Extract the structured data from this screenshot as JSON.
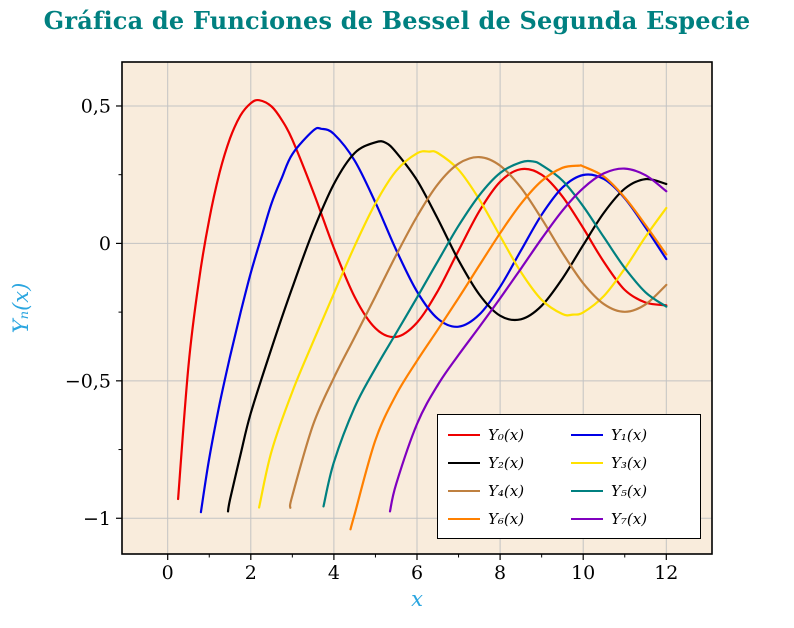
{
  "figure": {
    "title": "Gráfica de Funciones de Bessel de Segunda Especie",
    "title_color": "#008080",
    "background": "#ffffff"
  },
  "plot": {
    "background": "#f9ecdc",
    "border_color": "#000000",
    "grid_color": "#c3c3c3",
    "line_width": 2.2
  },
  "axes": {
    "x": {
      "label": "x",
      "label_color": "#2ba6e0",
      "ticks": [
        0,
        2,
        4,
        6,
        8,
        10,
        12
      ],
      "tick_labels": [
        "0",
        "2",
        "4",
        "6",
        "8",
        "10",
        "12"
      ],
      "minor_ticks": [
        1,
        3,
        5,
        7,
        9,
        11
      ]
    },
    "y": {
      "label": "Yₙ(x)",
      "label_color": "#2ba6e0",
      "ticks": [
        0.5,
        0,
        -0.5,
        -1
      ],
      "tick_labels": [
        "0,5",
        "0",
        "−0,5",
        "−1"
      ],
      "minor_ticks": [
        0.25,
        -0.25,
        -0.75
      ]
    }
  },
  "legend": {
    "columns": 2,
    "entries": [
      {
        "label": "Y₀(x)",
        "color": "#ee0000"
      },
      {
        "label": "Y₁(x)",
        "color": "#0000e6"
      },
      {
        "label": "Y₂(x)",
        "color": "#000000"
      },
      {
        "label": "Y₃(x)",
        "color": "#ffe100"
      },
      {
        "label": "Y₄(x)",
        "color": "#bf8040"
      },
      {
        "label": "Y₅(x)",
        "color": "#008080"
      },
      {
        "label": "Y₆(x)",
        "color": "#ff8000"
      },
      {
        "label": "Y₇(x)",
        "color": "#8000bf"
      }
    ]
  },
  "chart_data": {
    "type": "line",
    "title": "Gráfica de Funciones de Bessel de Segunda Especie",
    "xlabel": "x",
    "ylabel": "Yₙ(x)",
    "xlim": [
      -1.1,
      13.1
    ],
    "ylim": [
      -1.13,
      0.66
    ],
    "xticks": [
      0,
      2,
      4,
      6,
      8,
      10,
      12
    ],
    "yticks": [
      0.5,
      0,
      -0.5,
      -1
    ],
    "grid": true,
    "legend_position": "bottom-right",
    "series": [
      {
        "name": "Y₀(x)",
        "color": "#ee0000",
        "points": [
          [
            0.25,
            -0.93
          ],
          [
            0.5,
            -0.445
          ],
          [
            0.75,
            -0.137
          ],
          [
            1,
            0.088
          ],
          [
            1.25,
            0.258
          ],
          [
            1.5,
            0.382
          ],
          [
            1.75,
            0.465
          ],
          [
            2,
            0.51
          ],
          [
            2.2,
            0.521
          ],
          [
            2.5,
            0.498
          ],
          [
            2.75,
            0.448
          ],
          [
            3,
            0.377
          ],
          [
            3.5,
            0.189
          ],
          [
            4,
            -0.017
          ],
          [
            4.5,
            -0.195
          ],
          [
            5,
            -0.309
          ],
          [
            5.5,
            -0.34
          ],
          [
            6,
            -0.288
          ],
          [
            6.5,
            -0.173
          ],
          [
            7,
            -0.026
          ],
          [
            7.5,
            0.117
          ],
          [
            8,
            0.224
          ],
          [
            8.5,
            0.27
          ],
          [
            9,
            0.25
          ],
          [
            9.5,
            0.171
          ],
          [
            10,
            0.056
          ],
          [
            10.5,
            -0.068
          ],
          [
            11,
            -0.169
          ],
          [
            11.5,
            -0.215
          ],
          [
            12,
            -0.225
          ]
        ]
      },
      {
        "name": "Y₁(x)",
        "color": "#0000e6",
        "points": [
          [
            0.8,
            -0.978
          ],
          [
            1,
            -0.781
          ],
          [
            1.25,
            -0.584
          ],
          [
            1.5,
            -0.412
          ],
          [
            1.75,
            -0.254
          ],
          [
            2,
            -0.107
          ],
          [
            2.25,
            0.021
          ],
          [
            2.5,
            0.146
          ],
          [
            2.75,
            0.24
          ],
          [
            3,
            0.325
          ],
          [
            3.5,
            0.41
          ],
          [
            3.7,
            0.417
          ],
          [
            4,
            0.398
          ],
          [
            4.5,
            0.301
          ],
          [
            5,
            0.148
          ],
          [
            5.5,
            -0.024
          ],
          [
            6,
            -0.175
          ],
          [
            6.5,
            -0.274
          ],
          [
            7,
            -0.303
          ],
          [
            7.5,
            -0.259
          ],
          [
            8,
            -0.158
          ],
          [
            8.5,
            -0.026
          ],
          [
            9,
            0.104
          ],
          [
            9.5,
            0.203
          ],
          [
            10,
            0.249
          ],
          [
            10.5,
            0.234
          ],
          [
            11,
            0.164
          ],
          [
            11.5,
            0.058
          ],
          [
            12,
            -0.057
          ]
        ]
      },
      {
        "name": "Y₂(x)",
        "color": "#000000",
        "points": [
          [
            1.45,
            -0.975
          ],
          [
            1.5,
            -0.932
          ],
          [
            1.75,
            -0.77
          ],
          [
            2,
            -0.617
          ],
          [
            2.5,
            -0.381
          ],
          [
            3,
            -0.16
          ],
          [
            3.5,
            0.045
          ],
          [
            4,
            0.216
          ],
          [
            4.5,
            0.329
          ],
          [
            5,
            0.368
          ],
          [
            5.25,
            0.366
          ],
          [
            5.5,
            0.331
          ],
          [
            6,
            0.23
          ],
          [
            6.5,
            0.089
          ],
          [
            7,
            -0.061
          ],
          [
            7.5,
            -0.186
          ],
          [
            8,
            -0.263
          ],
          [
            8.5,
            -0.276
          ],
          [
            9,
            -0.227
          ],
          [
            9.5,
            -0.128
          ],
          [
            10,
            -0.006
          ],
          [
            10.5,
            0.112
          ],
          [
            11,
            0.199
          ],
          [
            11.5,
            0.234
          ],
          [
            12,
            0.216
          ]
        ]
      },
      {
        "name": "Y₃(x)",
        "color": "#ffe100",
        "points": [
          [
            2.2,
            -0.961
          ],
          [
            2.5,
            -0.756
          ],
          [
            3,
            -0.539
          ],
          [
            3.5,
            -0.358
          ],
          [
            4,
            -0.182
          ],
          [
            4.5,
            -0.009
          ],
          [
            5,
            0.146
          ],
          [
            5.5,
            0.264
          ],
          [
            6,
            0.328
          ],
          [
            6.3,
            0.334
          ],
          [
            6.5,
            0.329
          ],
          [
            7,
            0.268
          ],
          [
            7.5,
            0.16
          ],
          [
            8,
            0.027
          ],
          [
            8.5,
            -0.104
          ],
          [
            9,
            -0.205
          ],
          [
            9.5,
            -0.257
          ],
          [
            9.75,
            -0.259
          ],
          [
            10,
            -0.251
          ],
          [
            10.5,
            -0.191
          ],
          [
            11,
            -0.092
          ],
          [
            11.5,
            0.024
          ],
          [
            12,
            0.129
          ]
        ]
      },
      {
        "name": "Y₄(x)",
        "color": "#bf8040",
        "points": [
          [
            2.95,
            -0.962
          ],
          [
            3,
            -0.917
          ],
          [
            3.5,
            -0.66
          ],
          [
            4,
            -0.489
          ],
          [
            4.5,
            -0.341
          ],
          [
            5,
            -0.192
          ],
          [
            5.5,
            -0.042
          ],
          [
            6,
            0.098
          ],
          [
            6.5,
            0.215
          ],
          [
            7,
            0.29
          ],
          [
            7.5,
            0.314
          ],
          [
            8,
            0.283
          ],
          [
            8.5,
            0.203
          ],
          [
            9,
            0.09
          ],
          [
            9.5,
            -0.034
          ],
          [
            10,
            -0.145
          ],
          [
            10.5,
            -0.221
          ],
          [
            11,
            -0.249
          ],
          [
            11.5,
            -0.222
          ],
          [
            12,
            -0.151
          ]
        ]
      },
      {
        "name": "Y₅(x)",
        "color": "#008080",
        "points": [
          [
            3.75,
            -0.957
          ],
          [
            4,
            -0.796
          ],
          [
            4.5,
            -0.596
          ],
          [
            5,
            -0.454
          ],
          [
            5.5,
            -0.326
          ],
          [
            6,
            -0.197
          ],
          [
            6.5,
            -0.065
          ],
          [
            7,
            0.064
          ],
          [
            7.5,
            0.175
          ],
          [
            8,
            0.256
          ],
          [
            8.5,
            0.295
          ],
          [
            8.8,
            0.298
          ],
          [
            9,
            0.285
          ],
          [
            9.5,
            0.229
          ],
          [
            10,
            0.135
          ],
          [
            10.5,
            0.022
          ],
          [
            11,
            -0.089
          ],
          [
            11.5,
            -0.178
          ],
          [
            12,
            -0.23
          ]
        ]
      },
      {
        "name": "Y₆(x)",
        "color": "#ff8000",
        "points": [
          [
            4.4,
            -1.04
          ],
          [
            4.5,
            -0.985
          ],
          [
            5,
            -0.715
          ],
          [
            5.5,
            -0.55
          ],
          [
            6,
            -0.427
          ],
          [
            6.5,
            -0.314
          ],
          [
            7,
            -0.199
          ],
          [
            7.5,
            -0.08
          ],
          [
            8,
            0.037
          ],
          [
            8.5,
            0.144
          ],
          [
            9,
            0.227
          ],
          [
            9.5,
            0.275
          ],
          [
            9.9,
            0.283
          ],
          [
            10,
            0.28
          ],
          [
            10.5,
            0.243
          ],
          [
            11,
            0.167
          ],
          [
            11.5,
            0.067
          ],
          [
            12,
            -0.04
          ]
        ]
      },
      {
        "name": "Y₇(x)",
        "color": "#8000bf",
        "points": [
          [
            5.35,
            -0.975
          ],
          [
            5.5,
            -0.875
          ],
          [
            6,
            -0.657
          ],
          [
            6.5,
            -0.515
          ],
          [
            7,
            -0.406
          ],
          [
            7.5,
            -0.304
          ],
          [
            8,
            -0.2
          ],
          [
            8.5,
            -0.092
          ],
          [
            9,
            0.017
          ],
          [
            9.5,
            0.119
          ],
          [
            10,
            0.201
          ],
          [
            10.5,
            0.255
          ],
          [
            11,
            0.272
          ],
          [
            11.5,
            0.248
          ],
          [
            12,
            0.19
          ]
        ]
      }
    ]
  }
}
